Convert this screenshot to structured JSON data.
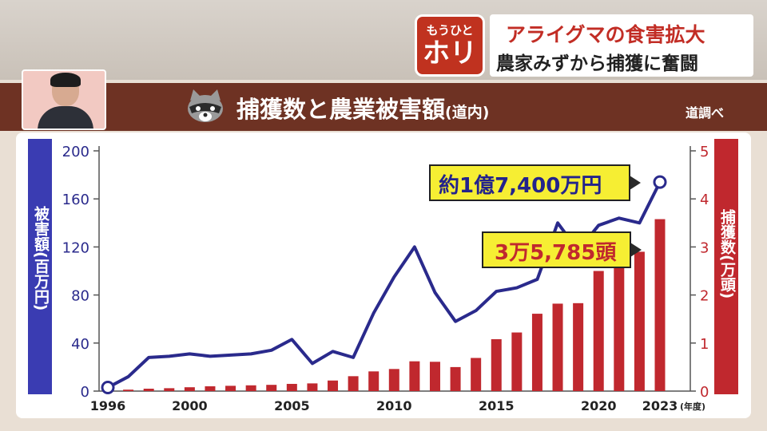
{
  "logo": {
    "line1": "もうひと",
    "line2": "ホリ"
  },
  "headline": {
    "line1": "アライグマの食害拡大",
    "line2": "農家みずから捕獲に奮闘"
  },
  "title": {
    "main": "捕獲数と農業被害額",
    "sub": "(道内)"
  },
  "source": "道調べ",
  "callouts": {
    "damage": "約1億7,400万円",
    "captures": "3万5,785頭"
  },
  "chart_data": {
    "type": "bar+line",
    "title": "捕獲数と農業被害額(道内)",
    "x": [
      1996,
      1997,
      1998,
      1999,
      2000,
      2001,
      2002,
      2003,
      2004,
      2005,
      2006,
      2007,
      2008,
      2009,
      2010,
      2011,
      2012,
      2013,
      2014,
      2015,
      2016,
      2017,
      2018,
      2019,
      2020,
      2021,
      2022,
      2023
    ],
    "x_ticks": [
      "1996",
      "2000",
      "2005",
      "2010",
      "2015",
      "2020",
      "2023"
    ],
    "x_unit": "(年度)",
    "left_axis": {
      "label": "被害額(百万円)",
      "range": [
        0,
        200
      ],
      "ticks": [
        "0",
        "40",
        "80",
        "120",
        "160",
        "200"
      ],
      "color": "#2a2a8c"
    },
    "right_axis": {
      "label": "捕獲数(万頭)",
      "range": [
        0,
        5
      ],
      "ticks": [
        "0",
        "1",
        "2",
        "3",
        "4",
        "5"
      ],
      "color": "#c0282e"
    },
    "series": [
      {
        "kind": "line",
        "axis": "left",
        "color": "#2a2a8c",
        "values": [
          3,
          12,
          28,
          29,
          31,
          29,
          30,
          31,
          34,
          43,
          23,
          33,
          28,
          65,
          95,
          120,
          82,
          58,
          67,
          83,
          86,
          93,
          140,
          117,
          138,
          144,
          140,
          174
        ]
      },
      {
        "kind": "bar",
        "axis": "right",
        "color": "#c0282e",
        "values": [
          0.01,
          0.03,
          0.05,
          0.06,
          0.08,
          0.1,
          0.11,
          0.12,
          0.13,
          0.15,
          0.16,
          0.22,
          0.31,
          0.41,
          0.46,
          0.62,
          0.61,
          0.5,
          0.69,
          1.08,
          1.22,
          1.61,
          1.82,
          1.83,
          2.5,
          2.65,
          2.9,
          3.5785
        ]
      }
    ]
  }
}
